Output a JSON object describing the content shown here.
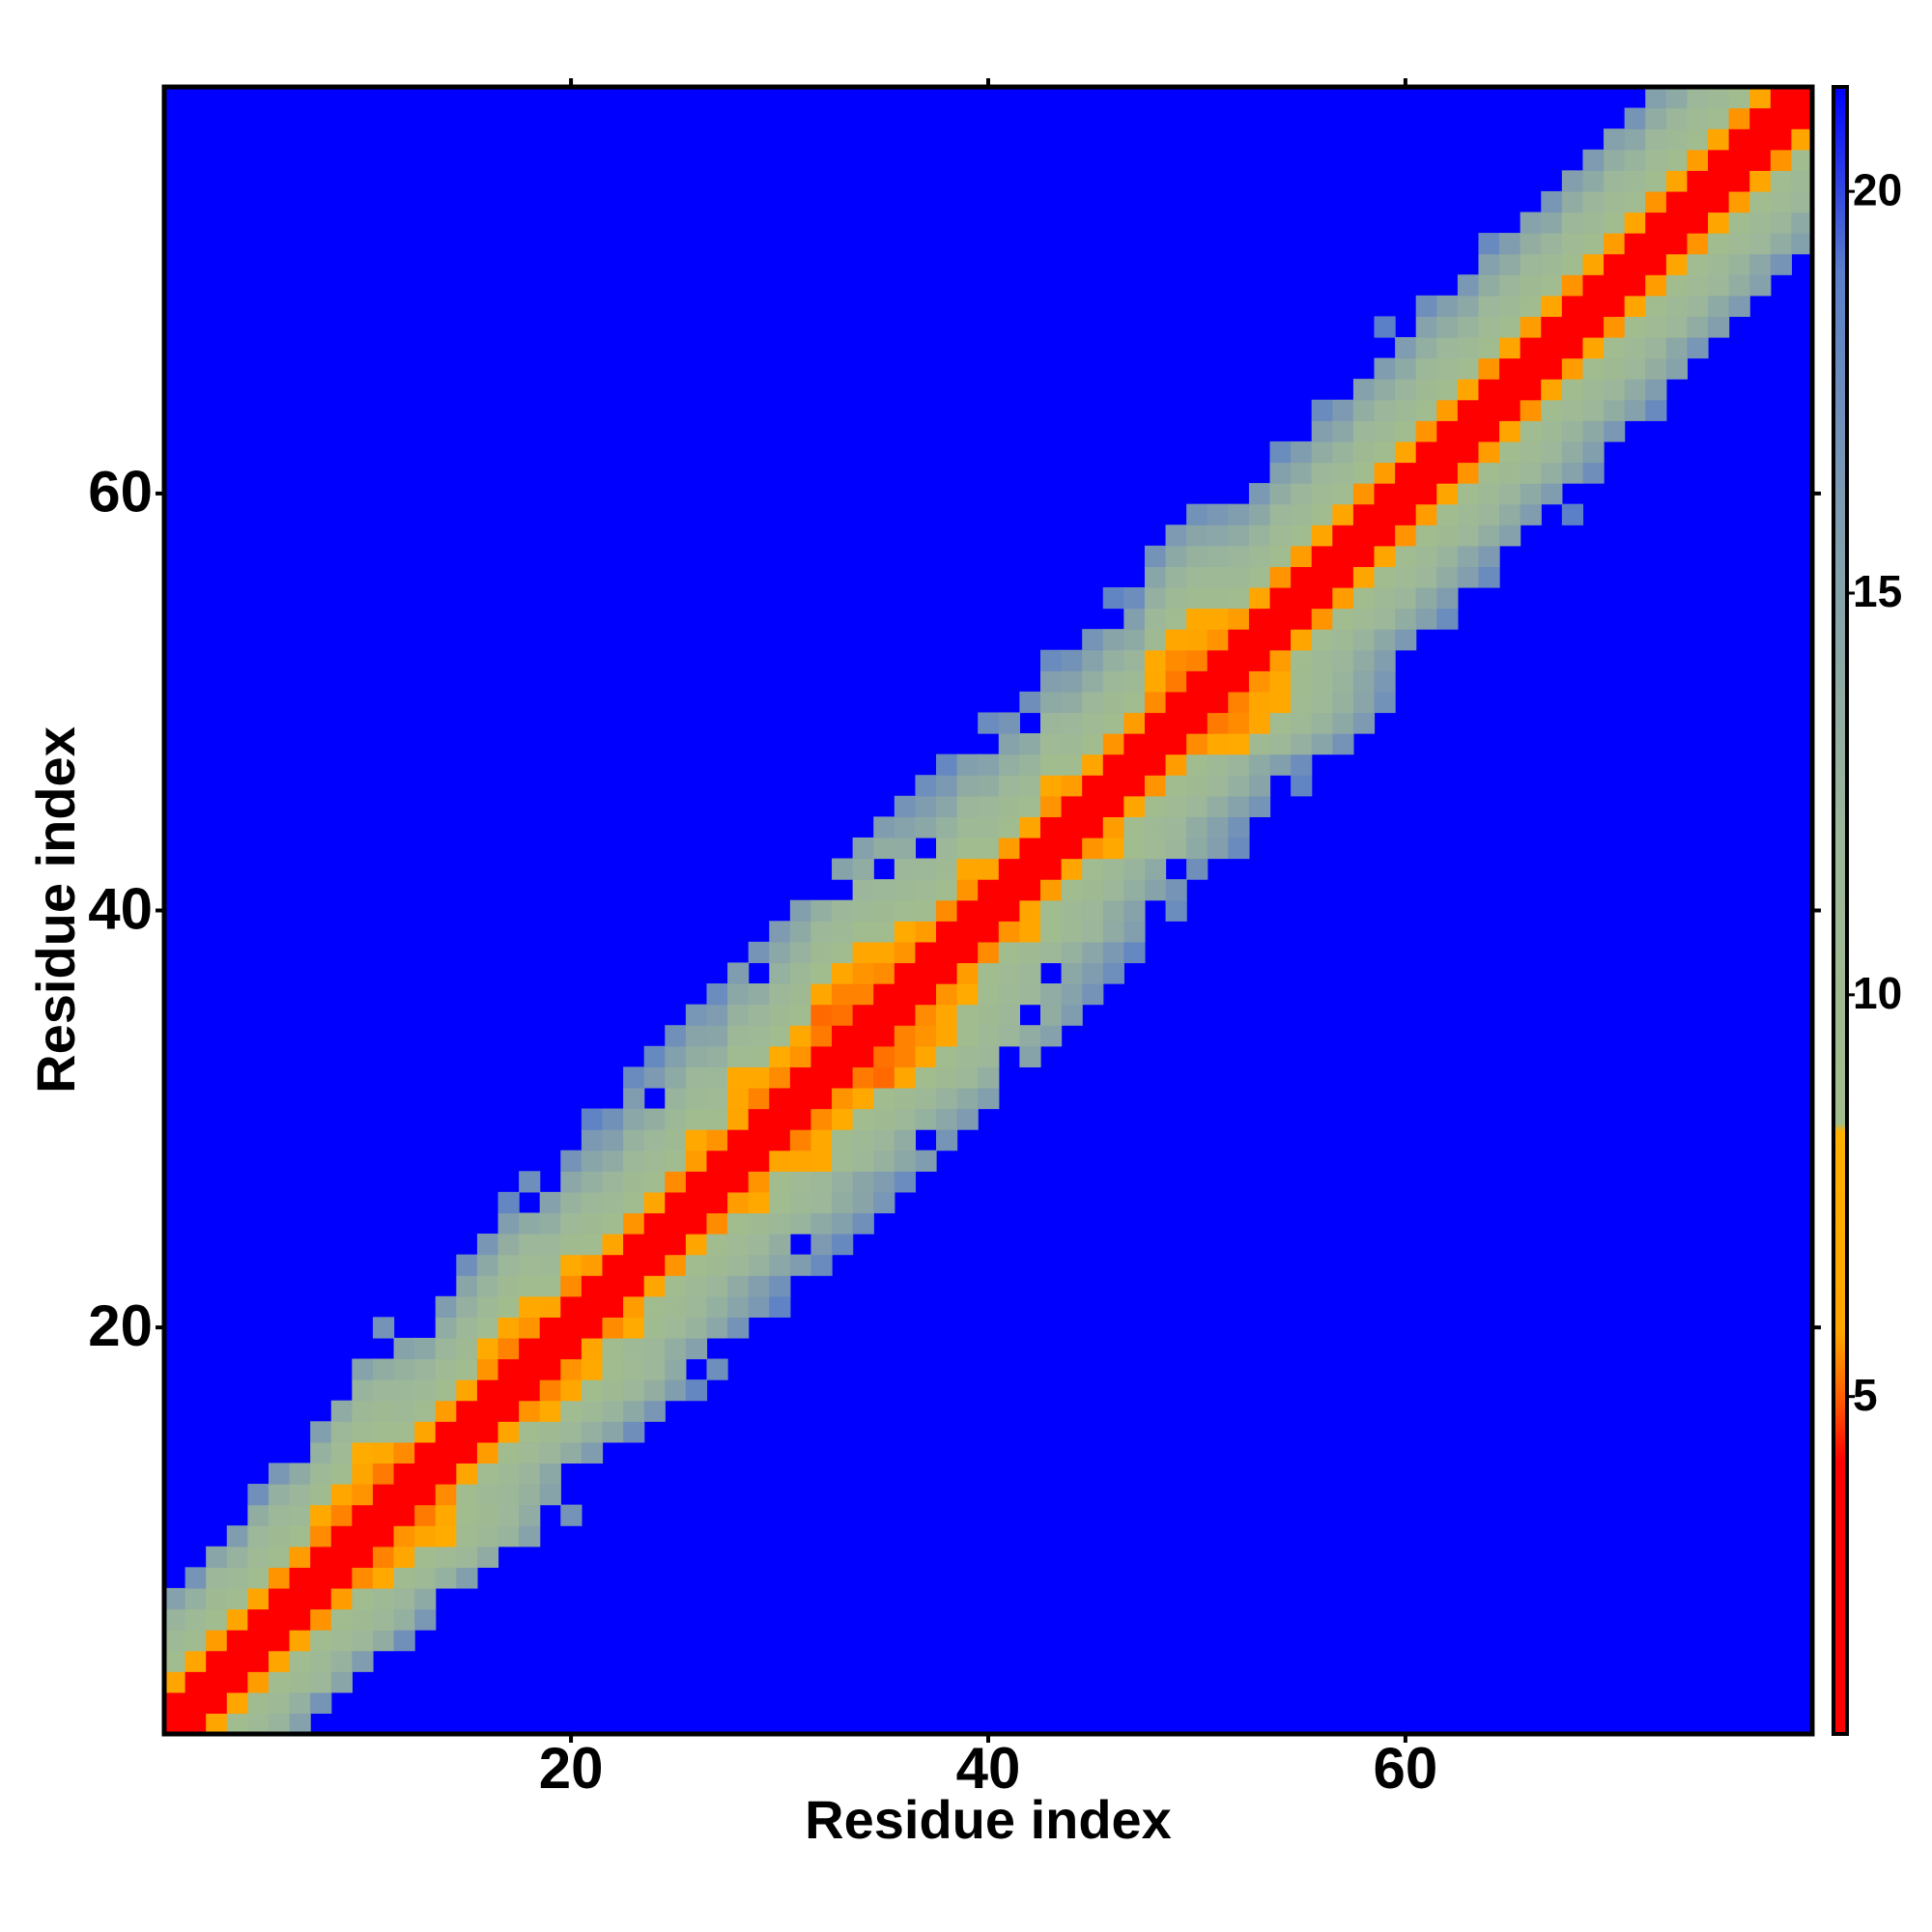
{
  "chart_data": {
    "type": "heatmap",
    "xlabel": "Residue index",
    "ylabel": "Residue index",
    "xlim": [
      0.5,
      79.5
    ],
    "ylim": [
      0.5,
      79.5
    ],
    "xticks": [
      20,
      40,
      60
    ],
    "yticks": [
      20,
      40,
      60
    ],
    "background": "#0000ff",
    "clim": [
      0.8,
      21.3
    ],
    "cticks": [
      5,
      10,
      15,
      20
    ],
    "colorscale": [
      [
        0.8,
        "#ff0000"
      ],
      [
        4.2,
        "#ff0000"
      ],
      [
        5.0,
        "#ff6000"
      ],
      [
        5.8,
        "#ffa500"
      ],
      [
        8.3,
        "#ffb000"
      ],
      [
        8.4,
        "#a2bd8c"
      ],
      [
        12,
        "#9cb79a"
      ],
      [
        16,
        "#7f9cb0"
      ],
      [
        19,
        "#5a7fc8"
      ],
      [
        21.3,
        "#0000ff"
      ]
    ],
    "x": [
      1,
      2,
      3,
      4,
      5,
      6,
      7,
      8,
      9,
      10,
      11,
      12,
      13,
      14,
      15,
      16,
      17,
      18,
      19,
      20,
      21,
      22,
      23,
      24,
      25,
      26,
      27,
      28,
      29,
      30,
      31,
      32,
      33,
      34,
      35,
      36,
      37,
      38,
      39,
      40,
      41,
      42,
      43,
      44,
      45,
      46,
      47,
      48,
      49,
      50,
      51,
      52,
      53,
      54,
      55,
      56,
      57,
      58,
      59,
      60,
      61,
      62,
      63,
      64,
      65,
      66,
      67,
      68,
      69,
      70,
      71,
      72,
      73,
      74,
      75,
      76,
      77,
      78,
      79
    ],
    "z": [
      [
        0,
        3.8,
        5.9,
        9.1,
        10.7,
        12.4,
        15.2,
        null,
        null,
        null
      ],
      [
        0,
        3.8,
        5.8,
        9.4,
        10.9,
        13.1,
        16.8,
        null,
        null,
        null
      ],
      [
        0,
        3.8,
        5.7,
        9.0,
        10.2,
        12.0,
        14.6,
        null,
        null,
        null
      ],
      [
        0,
        3.8,
        5.9,
        9.3,
        10.8,
        12.7,
        15.9,
        null,
        null,
        null
      ],
      [
        0,
        3.8,
        5.8,
        9.2,
        10.5,
        11.9,
        13.5,
        17.2,
        null,
        null
      ],
      [
        0,
        3.8,
        5.6,
        8.9,
        10.3,
        11.6,
        13.1,
        16.4,
        null,
        null
      ],
      [
        0,
        3.8,
        5.7,
        9.1,
        10.6,
        12.2,
        14.0,
        null,
        null,
        null
      ],
      [
        0,
        3.8,
        5.5,
        6.8,
        9.4,
        10.8,
        12.9,
        15.6,
        null,
        null
      ],
      [
        0,
        3.8,
        5.4,
        6.2,
        8.9,
        10.4,
        11.7,
        13.8,
        null,
        null
      ],
      [
        0,
        3.8,
        5.6,
        5.9,
        7.1,
        9.6,
        11.2,
        12.5,
        15.1,
        null
      ],
      [
        0,
        3.8,
        5.3,
        6.4,
        9.2,
        10.1,
        11.9,
        13.6,
        null,
        16.9
      ],
      [
        0,
        3.8,
        5.5,
        9.0,
        10.6,
        11.4,
        12.8,
        14.9,
        null,
        null
      ],
      [
        0,
        3.8,
        5.8,
        9.3,
        11.0,
        12.3,
        14.2,
        null,
        null,
        null
      ],
      [
        0,
        3.8,
        5.7,
        9.1,
        10.4,
        12.1,
        13.7,
        15.8,
        null,
        null
      ],
      [
        0,
        3.8,
        5.9,
        8.8,
        10.2,
        11.7,
        13.0,
        14.6,
        17.3,
        null
      ],
      [
        0,
        3.8,
        5.6,
        6.9,
        9.3,
        10.9,
        12.4,
        14.1,
        16.5,
        null
      ],
      [
        0,
        3.8,
        5.4,
        6.1,
        8.7,
        10.3,
        11.8,
        13.3,
        15.7,
        18.2
      ],
      [
        0,
        3.8,
        5.6,
        6.6,
        9.0,
        10.5,
        12.0,
        13.9,
        null,
        17.4
      ],
      [
        0,
        3.8,
        5.8,
        9.1,
        10.7,
        11.9,
        13.4,
        15.2,
        null,
        null
      ],
      [
        0,
        3.8,
        5.5,
        7.0,
        9.5,
        11.1,
        12.6,
        14.4,
        16.9,
        null
      ],
      [
        0,
        3.8,
        5.7,
        9.0,
        10.3,
        11.6,
        13.1,
        14.7,
        16.3,
        18.6
      ],
      [
        0,
        3.8,
        5.9,
        9.2,
        10.8,
        12.2,
        13.8,
        15.5,
        17.1,
        null
      ],
      [
        0,
        3.8,
        5.6,
        8.9,
        10.1,
        11.4,
        12.7,
        14.3,
        15.9,
        17.8
      ],
      [
        0,
        3.8,
        5.8,
        9.1,
        10.5,
        11.8,
        13.3,
        null,
        16.2,
        18.0
      ],
      [
        0,
        3.8,
        5.5,
        8.8,
        10.0,
        11.3,
        12.5,
        13.9,
        15.4,
        17.2
      ],
      [
        0,
        3.8,
        5.7,
        6.4,
        9.2,
        10.6,
        11.9,
        13.5,
        14.8,
        16.6
      ],
      [
        0,
        3.8,
        5.6,
        9.0,
        10.4,
        11.7,
        13.0,
        14.6,
        16.0,
        17.7
      ],
      [
        0,
        3.8,
        5.8,
        6.2,
        6.8,
        9.8,
        11.3,
        12.8,
        14.2,
        15.9
      ],
      [
        0,
        3.8,
        5.4,
        6.7,
        9.4,
        10.9,
        12.2,
        13.6,
        null,
        16.8
      ],
      [
        0,
        3.8,
        5.5,
        7.1,
        9.1,
        10.2,
        11.6,
        12.9,
        14.4,
        16.1
      ],
      [
        0,
        3.8,
        5.6,
        6.5,
        8.9,
        10.0,
        11.2,
        12.7,
        14.0,
        15.6
      ],
      [
        0,
        3.8,
        5.3,
        5.1,
        6.2,
        8.7,
        10.3,
        11.5,
        13.2,
        null
      ],
      [
        0,
        3.8,
        5.2,
        5.4,
        6.0,
        8.9,
        10.6,
        11.8,
        null,
        14.9
      ],
      [
        0,
        3.8,
        5.4,
        5.6,
        6.3,
        9.2,
        10.9,
        12.1,
        13.7,
        15.3
      ],
      [
        0,
        3.8,
        5.5,
        6.1,
        8.8,
        10.1,
        11.4,
        null,
        13.5,
        15.8
      ],
      [
        0,
        3.8,
        5.6,
        6.9,
        9.3,
        10.7,
        12.0,
        13.6,
        15.1,
        16.9
      ],
      [
        0,
        3.8,
        5.7,
        9.0,
        10.4,
        11.6,
        null,
        14.2,
        15.8,
        17.4
      ],
      [
        0,
        3.8,
        5.5,
        8.9,
        10.2,
        11.5,
        12.9,
        14.5,
        16.3,
        18.1
      ],
      [
        0,
        3.8,
        5.6,
        6.3,
        9.1,
        10.6,
        12.1,
        13.8,
        15.6,
        null
      ],
      [
        0,
        3.8,
        5.8,
        9.2,
        10.7,
        12.0,
        13.5,
        15.1,
        null,
        17.6
      ],
      [
        0,
        3.8,
        5.7,
        9.0,
        10.3,
        11.8,
        13.2,
        14.9,
        16.7,
        null
      ],
      [
        0,
        3.8,
        5.9,
        9.3,
        10.9,
        12.4,
        14.0,
        null,
        17.3,
        null
      ],
      [
        0,
        3.8,
        5.6,
        6.7,
        9.2,
        10.5,
        12.2,
        13.9,
        15.5,
        17.8
      ],
      [
        0,
        3.8,
        5.7,
        9.1,
        10.6,
        12.0,
        13.6,
        15.3,
        17.0,
        null
      ],
      [
        0,
        3.8,
        5.8,
        9.0,
        10.4,
        11.9,
        13.4,
        15.0,
        16.8,
        null
      ],
      [
        0,
        3.8,
        5.6,
        8.9,
        10.2,
        11.7,
        13.1,
        14.8,
        null,
        18.4
      ],
      [
        0,
        3.8,
        5.7,
        9.2,
        10.7,
        12.3,
        13.9,
        15.6,
        17.5,
        null
      ],
      [
        0,
        3.8,
        5.5,
        6.4,
        6.9,
        10.1,
        11.5,
        13.0,
        14.7,
        16.9
      ],
      [
        0,
        3.8,
        5.3,
        5.5,
        6.2,
        9.3,
        10.8,
        12.4,
        14.1,
        16.2
      ],
      [
        0,
        3.8,
        5.4,
        5.8,
        6.6,
        9.7,
        11.1,
        12.8,
        14.6,
        17.0
      ],
      [
        0,
        3.8,
        5.6,
        6.8,
        9.4,
        10.9,
        12.5,
        14.3,
        16.4,
        null
      ],
      [
        0,
        3.8,
        5.7,
        9.1,
        10.6,
        12.1,
        13.8,
        15.7,
        null,
        null
      ],
      [
        0,
        3.8,
        5.8,
        9.3,
        10.8,
        12.4,
        14.2,
        16.3,
        null,
        null
      ],
      [
        0,
        3.8,
        5.6,
        9.0,
        10.4,
        11.9,
        13.5,
        15.4,
        17.6,
        null
      ],
      [
        0,
        3.8,
        5.7,
        9.2,
        10.7,
        12.2,
        13.9,
        15.9,
        null,
        null
      ],
      [
        0,
        3.8,
        5.9,
        9.1,
        10.5,
        12.0,
        13.6,
        15.5,
        17.8,
        null
      ],
      [
        0,
        3.8,
        5.8,
        9.3,
        10.9,
        12.5,
        14.3,
        16.2,
        null,
        null
      ],
      [
        0,
        3.8,
        5.6,
        9.0,
        10.3,
        11.8,
        13.4,
        15.3,
        null,
        null
      ],
      [
        0,
        3.8,
        5.7,
        9.2,
        10.6,
        12.1,
        13.7,
        15.8,
        null,
        18.9
      ],
      [
        0,
        3.8,
        5.8,
        9.1,
        10.8,
        12.3,
        14.0,
        16.0,
        null,
        null
      ],
      [
        0,
        3.8,
        5.6,
        8.9,
        10.2,
        11.7,
        13.2,
        15.1,
        17.3,
        null
      ],
      [
        0,
        3.8,
        5.7,
        9.0,
        10.5,
        12.0,
        13.6,
        15.6,
        null,
        null
      ],
      [
        0,
        3.8,
        5.9,
        9.3,
        10.9,
        12.4,
        14.1,
        16.4,
        null,
        null
      ],
      [
        0,
        3.8,
        5.6,
        9.1,
        10.4,
        11.9,
        13.5,
        15.2,
        17.9,
        null
      ],
      [
        0,
        3.8,
        5.8,
        9.2,
        10.7,
        12.2,
        13.8,
        15.9,
        null,
        null
      ],
      [
        0,
        3.8,
        5.7,
        9.0,
        10.3,
        11.8,
        13.3,
        15.0,
        null,
        null
      ],
      [
        0,
        3.8,
        5.9,
        9.3,
        10.8,
        12.3,
        14.2,
        16.6,
        null,
        null
      ],
      [
        0,
        3.8,
        5.6,
        9.1,
        10.5,
        12.0,
        13.7,
        15.5,
        null,
        null
      ],
      [
        0,
        3.8,
        5.8,
        9.2,
        10.6,
        12.1,
        13.9,
        16.1,
        null,
        null
      ],
      [
        0,
        3.8,
        5.7,
        9.0,
        10.4,
        11.9,
        13.4,
        15.3,
        null,
        null
      ],
      [
        0,
        3.8,
        5.9,
        9.3,
        10.9,
        12.5,
        14.4,
        16.8,
        null,
        null
      ],
      [
        0,
        3.8,
        5.6,
        9.1,
        10.5,
        12.0,
        13.6,
        15.4,
        null,
        null
      ],
      [
        0,
        3.8,
        5.8,
        9.2,
        10.7,
        12.2,
        13.9,
        null,
        null,
        null
      ],
      [
        0,
        3.8,
        5.7,
        9.0,
        10.4,
        11.8,
        null,
        null,
        null,
        null
      ],
      [
        0,
        3.8,
        5.9,
        9.3,
        10.8,
        null,
        null,
        null,
        null,
        null
      ],
      [
        0,
        3.8,
        5.6,
        9.1,
        null,
        null,
        null,
        null,
        null,
        null
      ],
      [
        0,
        3.8,
        5.8,
        null,
        null,
        null,
        null,
        null,
        null,
        null
      ],
      [
        0,
        3.8,
        null,
        null,
        null,
        null,
        null,
        null,
        null,
        null
      ],
      [
        0,
        null,
        null,
        null,
        null,
        null,
        null,
        null,
        null,
        null
      ]
    ]
  }
}
